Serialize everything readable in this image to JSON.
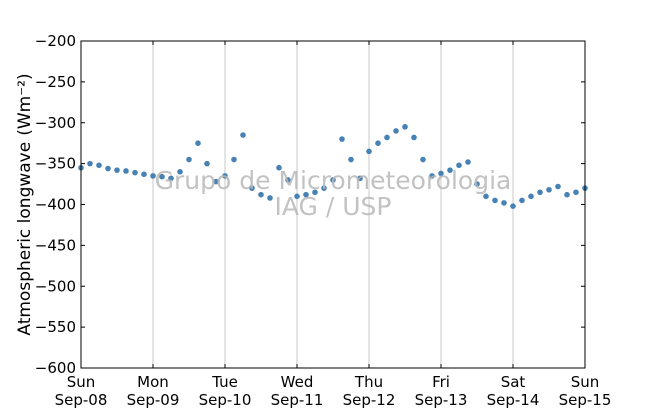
{
  "chart_data": {
    "type": "scatter",
    "title": "",
    "ylabel": "Atmospheric longwave",
    "ylabel_unit": "(Wm⁻²)",
    "xlabel": "",
    "ylim": [
      -600,
      -200
    ],
    "yticks": [
      -200,
      -250,
      -300,
      -350,
      -400,
      -450,
      -500,
      -550,
      -600
    ],
    "xlim": [
      "2013-09-08",
      "2013-09-15"
    ],
    "xticks": [
      {
        "date": "2013-09-08",
        "day": "Sun",
        "label": "Sep-08"
      },
      {
        "date": "2013-09-09",
        "day": "Mon",
        "label": "Sep-09"
      },
      {
        "date": "2013-09-10",
        "day": "Tue",
        "label": "Sep-10"
      },
      {
        "date": "2013-09-11",
        "day": "Wed",
        "label": "Sep-11"
      },
      {
        "date": "2013-09-12",
        "day": "Thu",
        "label": "Sep-12"
      },
      {
        "date": "2013-09-13",
        "day": "Fri",
        "label": "Sep-13"
      },
      {
        "date": "2013-09-14",
        "day": "Sat",
        "label": "Sep-14"
      },
      {
        "date": "2013-09-15",
        "day": "Sun",
        "label": "Sep-15"
      }
    ],
    "grid": "vertical",
    "marker_color": "#4682b4",
    "series": [
      {
        "x": [
          "2013-09-08 00:00",
          "2013-09-08 03:00",
          "2013-09-08 06:00",
          "2013-09-08 09:00",
          "2013-09-08 12:00",
          "2013-09-08 15:00",
          "2013-09-08 18:00",
          "2013-09-08 21:00",
          "2013-09-09 00:00",
          "2013-09-09 03:00",
          "2013-09-09 06:00",
          "2013-09-09 09:00",
          "2013-09-09 12:00",
          "2013-09-09 15:00",
          "2013-09-09 18:00",
          "2013-09-09 21:00",
          "2013-09-10 00:00",
          "2013-09-10 03:00",
          "2013-09-10 06:00",
          "2013-09-10 09:00",
          "2013-09-10 12:00",
          "2013-09-10 15:00",
          "2013-09-10 18:00",
          "2013-09-10 21:00",
          "2013-09-11 00:00",
          "2013-09-11 03:00",
          "2013-09-11 06:00",
          "2013-09-11 09:00",
          "2013-09-11 12:00",
          "2013-09-11 15:00",
          "2013-09-11 18:00",
          "2013-09-11 21:00",
          "2013-09-12 00:00",
          "2013-09-12 03:00",
          "2013-09-12 06:00",
          "2013-09-12 09:00",
          "2013-09-12 12:00",
          "2013-09-12 15:00",
          "2013-09-12 18:00",
          "2013-09-12 21:00",
          "2013-09-13 00:00",
          "2013-09-13 03:00",
          "2013-09-13 06:00",
          "2013-09-13 09:00",
          "2013-09-13 12:00",
          "2013-09-13 15:00",
          "2013-09-13 18:00",
          "2013-09-13 21:00",
          "2013-09-14 00:00",
          "2013-09-14 03:00",
          "2013-09-14 06:00",
          "2013-09-14 09:00",
          "2013-09-14 12:00",
          "2013-09-14 15:00",
          "2013-09-14 18:00",
          "2013-09-14 21:00",
          "2013-09-15 00:00"
        ],
        "y": [
          -355,
          -350,
          -352,
          -356,
          -358,
          -359,
          -361,
          -363,
          -365,
          -366,
          -368,
          -360,
          -345,
          -325,
          -350,
          -372,
          -365,
          -345,
          -315,
          -380,
          -388,
          -392,
          -355,
          -370,
          -390,
          -388,
          -385,
          -380,
          -370,
          -320,
          -345,
          -368,
          -335,
          -325,
          -318,
          -310,
          -305,
          -318,
          -345,
          -365,
          -362,
          -358,
          -352,
          -348,
          -375,
          -390,
          -395,
          -398,
          -402,
          -395,
          -390,
          -385,
          -382,
          -378,
          -388,
          -385,
          -380
        ]
      }
    ]
  },
  "watermark": {
    "line1": "Grupo de Micrometeorologia",
    "line2": "IAG / USP"
  }
}
